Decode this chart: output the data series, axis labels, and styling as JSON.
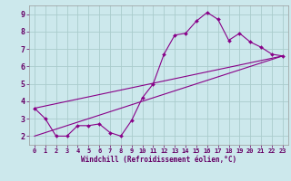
{
  "bg_color": "#cce8ec",
  "grid_color": "#aacccc",
  "line_color": "#880088",
  "marker_color": "#880088",
  "xlabel": "Windchill (Refroidissement éolien,°C)",
  "xlim": [
    -0.5,
    23.5
  ],
  "ylim": [
    1.5,
    9.5
  ],
  "yticks": [
    2,
    3,
    4,
    5,
    6,
    7,
    8,
    9
  ],
  "xticks": [
    0,
    1,
    2,
    3,
    4,
    5,
    6,
    7,
    8,
    9,
    10,
    11,
    12,
    13,
    14,
    15,
    16,
    17,
    18,
    19,
    20,
    21,
    22,
    23
  ],
  "series1_x": [
    0,
    1,
    2,
    3,
    4,
    5,
    6,
    7,
    8,
    9,
    10,
    11,
    12,
    13,
    14,
    15,
    16,
    17,
    18,
    19,
    20,
    21,
    22,
    23
  ],
  "series1_y": [
    3.6,
    3.0,
    2.0,
    2.0,
    2.6,
    2.6,
    2.7,
    2.2,
    2.0,
    2.9,
    4.2,
    5.0,
    6.7,
    7.8,
    7.9,
    8.6,
    9.1,
    8.7,
    7.5,
    7.9,
    7.4,
    7.1,
    6.7,
    6.6
  ],
  "series2_x": [
    0,
    23
  ],
  "series2_y": [
    2.0,
    6.6
  ],
  "series3_x": [
    0,
    23
  ],
  "series3_y": [
    3.6,
    6.6
  ]
}
